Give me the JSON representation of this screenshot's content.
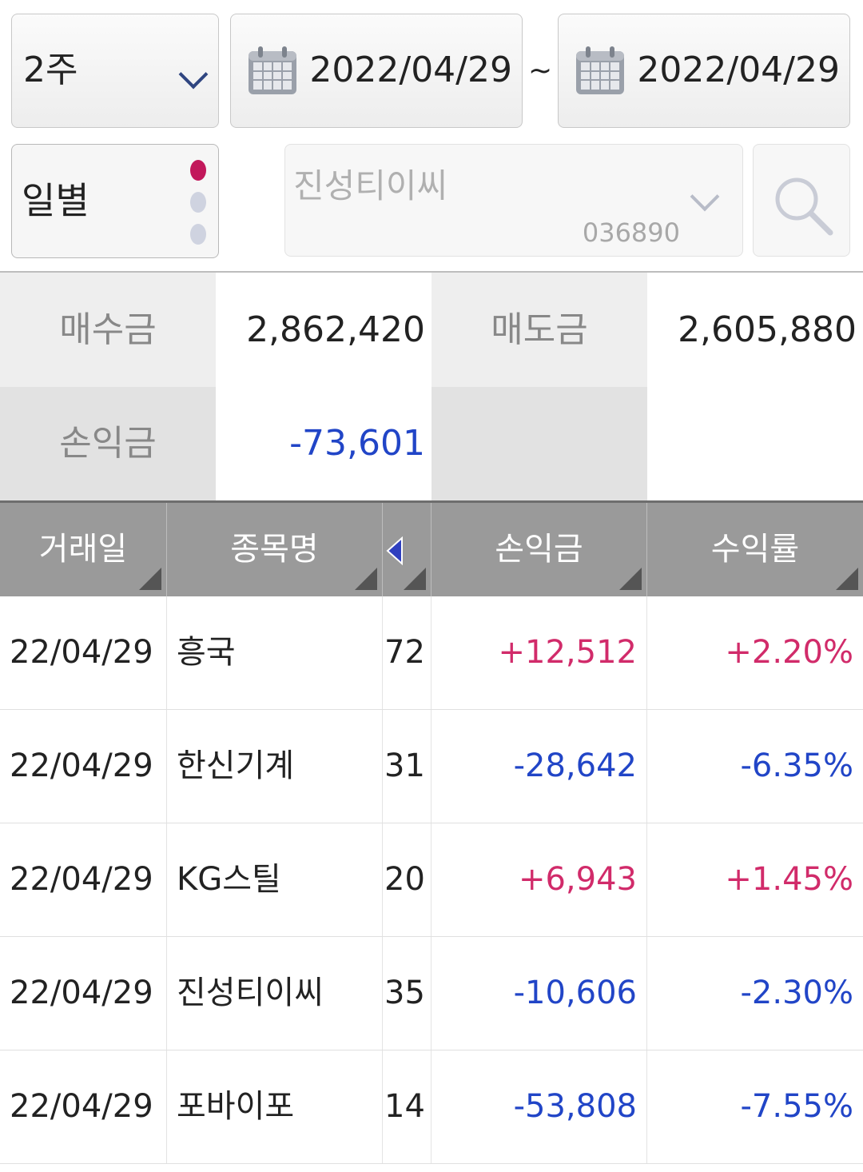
{
  "filter": {
    "period": "2주",
    "start_date": "2022/04/29",
    "separator": "~",
    "end_date": "2022/04/29",
    "mode": "일별",
    "stock_name": "진성티이씨",
    "stock_code": "036890",
    "icons": [
      "chevron-down-icon",
      "calendar-icon",
      "search-icon"
    ]
  },
  "summary": {
    "buy_label": "매수금",
    "buy_value": "2,862,420",
    "sell_label": "매도금",
    "sell_value": "2,605,880",
    "pl_label": "손익금",
    "pl_value": "-73,601"
  },
  "table": {
    "headers": {
      "date": "거래일",
      "name": "종목명",
      "pl": "손익금",
      "rate": "수익률"
    },
    "rows": [
      {
        "date": "22/04/29",
        "name": "흥국",
        "qty": "72",
        "pl": "+12,512",
        "rate": "+2.20%"
      },
      {
        "date": "22/04/29",
        "name": "한신기계",
        "qty": "31",
        "pl": "-28,642",
        "rate": "-6.35%"
      },
      {
        "date": "22/04/29",
        "name": "KG스틸",
        "qty": "20",
        "pl": "+6,943",
        "rate": "+1.45%"
      },
      {
        "date": "22/04/29",
        "name": "진성티이씨",
        "qty": "35",
        "pl": "-10,606",
        "rate": "-2.30%"
      },
      {
        "date": "22/04/29",
        "name": "포바이포",
        "qty": "14",
        "pl": "-53,808",
        "rate": "-7.55%"
      }
    ]
  },
  "colors": {
    "positive": "#d12b6a",
    "negative": "#2145c7",
    "header_bg": "#9a9a9a",
    "dot_active": "#c2185b",
    "dot_inactive": "#cfd3e0"
  }
}
